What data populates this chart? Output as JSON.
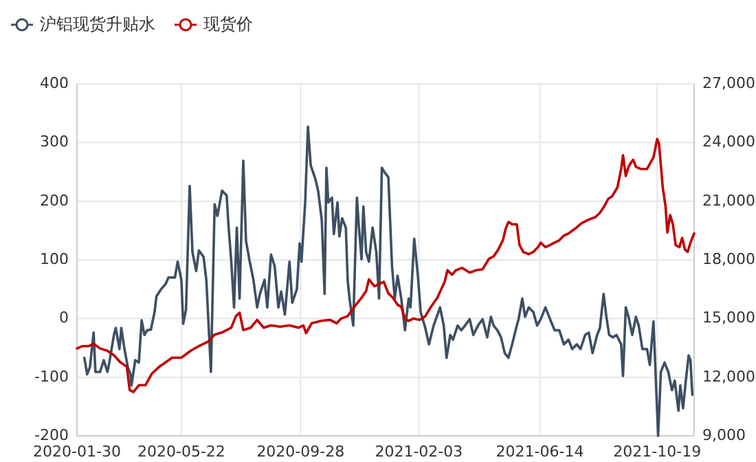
{
  "chart_data": {
    "type": "line",
    "xlim": [
      "2020-01-30",
      "2021-11-28"
    ],
    "xticks": [
      "2020-01-30",
      "2020-05-22",
      "2020-09-28",
      "2021-02-03",
      "2021-06-14",
      "2021-10-19"
    ],
    "ylim": [
      -200,
      400
    ],
    "yticks": [
      -200,
      -100,
      0,
      100,
      200,
      300,
      400
    ],
    "y2lim": [
      9000,
      27000
    ],
    "y2ticks": [
      {
        "value": 9000,
        "label": "9,000"
      },
      {
        "value": 12000,
        "label": "12,000"
      },
      {
        "value": 15000,
        "label": "15,000"
      },
      {
        "value": 18000,
        "label": "18,000"
      },
      {
        "value": 21000,
        "label": "21,000"
      },
      {
        "value": 24000,
        "label": "24,000"
      },
      {
        "value": 27000,
        "label": "27,000"
      }
    ],
    "grid": true,
    "legend": "top left",
    "line_style": "solid",
    "series": [
      {
        "name": "沪铝现货升贴水",
        "color": "#3d4f63",
        "axis": "y",
        "x": [
          "2020-02-07",
          "2020-02-10",
          "2020-02-13",
          "2020-02-17",
          "2020-02-19",
          "2020-02-24",
          "2020-02-28",
          "2020-03-03",
          "2020-03-05",
          "2020-03-10",
          "2020-03-12",
          "2020-03-16",
          "2020-03-18",
          "2020-03-21",
          "2020-03-25",
          "2020-03-28",
          "2020-03-29",
          "2020-04-02",
          "2020-04-06",
          "2020-04-09",
          "2020-04-12",
          "2020-04-15",
          "2020-04-19",
          "2020-04-23",
          "2020-04-25",
          "2020-04-30",
          "2020-05-05",
          "2020-05-08",
          "2020-05-15",
          "2020-05-18",
          "2020-05-22",
          "2020-05-24",
          "2020-05-27",
          "2020-05-31",
          "2020-06-03",
          "2020-06-07",
          "2020-06-10",
          "2020-06-15",
          "2020-06-18",
          "2020-06-23",
          "2020-06-27",
          "2020-06-30",
          "2020-07-05",
          "2020-07-10",
          "2020-07-12",
          "2020-07-15",
          "2020-07-18",
          "2020-07-21",
          "2020-07-24",
          "2020-07-28",
          "2020-07-31",
          "2020-08-04",
          "2020-08-08",
          "2020-08-12",
          "2020-08-15",
          "2020-08-20",
          "2020-08-23",
          "2020-08-27",
          "2020-08-31",
          "2020-09-04",
          "2020-09-07",
          "2020-09-11",
          "2020-09-16",
          "2020-09-19",
          "2020-09-24",
          "2020-09-27",
          "2020-09-29",
          "2020-10-03",
          "2020-10-06",
          "2020-10-09",
          "2020-10-14",
          "2020-10-17",
          "2020-10-21",
          "2020-10-24",
          "2020-10-26",
          "2020-10-28",
          "2020-11-01",
          "2020-11-03",
          "2020-11-07",
          "2020-11-09",
          "2020-11-12",
          "2020-11-16",
          "2020-11-18",
          "2020-11-20",
          "2020-11-24",
          "2020-11-28",
          "2020-11-30",
          "2020-12-03",
          "2020-12-05",
          "2020-12-08",
          "2020-12-11",
          "2020-12-15",
          "2020-12-19",
          "2020-12-22",
          "2020-12-25",
          "2020-12-28",
          "2021-01-01",
          "2021-01-05",
          "2021-01-08",
          "2021-01-11",
          "2021-01-15",
          "2021-01-19",
          "2021-01-23",
          "2021-01-25",
          "2021-01-29",
          "2021-02-02",
          "2021-02-05",
          "2021-02-10",
          "2021-02-14",
          "2021-02-19",
          "2021-02-26",
          "2021-03-02",
          "2021-03-05",
          "2021-03-09",
          "2021-03-12",
          "2021-03-17",
          "2021-03-21",
          "2021-03-25",
          "2021-03-30",
          "2021-04-03",
          "2021-04-08",
          "2021-04-13",
          "2021-04-18",
          "2021-04-22",
          "2021-04-25",
          "2021-04-29",
          "2021-05-03",
          "2021-05-07",
          "2021-05-11",
          "2021-05-15",
          "2021-05-20",
          "2021-05-22",
          "2021-05-26",
          "2021-05-29",
          "2021-06-02",
          "2021-06-07",
          "2021-06-11",
          "2021-06-15",
          "2021-06-20",
          "2021-06-25",
          "2021-06-30",
          "2021-07-05",
          "2021-07-10",
          "2021-07-15",
          "2021-07-19",
          "2021-07-24",
          "2021-07-28",
          "2021-08-02",
          "2021-08-06",
          "2021-08-10",
          "2021-08-15",
          "2021-08-18",
          "2021-08-22",
          "2021-08-25",
          "2021-08-28",
          "2021-09-01",
          "2021-09-05",
          "2021-09-10",
          "2021-09-12",
          "2021-09-15",
          "2021-09-18",
          "2021-09-22",
          "2021-09-26",
          "2021-09-29",
          "2021-10-03",
          "2021-10-08",
          "2021-10-11",
          "2021-10-15",
          "2021-10-18",
          "2021-10-20",
          "2021-10-23",
          "2021-10-27",
          "2021-10-31",
          "2021-11-04",
          "2021-11-07",
          "2021-11-11",
          "2021-11-13",
          "2021-11-16",
          "2021-11-19",
          "2021-11-22",
          "2021-11-24",
          "2021-11-26"
        ],
        "values": [
          -67,
          -95,
          -83,
          -24,
          -91,
          -91,
          -71,
          -91,
          -75,
          -28,
          -16,
          -52,
          -16,
          -48,
          -83,
          -95,
          -114,
          -71,
          -75,
          -3,
          -28,
          -20,
          -19,
          11,
          38,
          50,
          59,
          70,
          70,
          97,
          66,
          -9,
          15,
          226,
          113,
          81,
          116,
          105,
          66,
          -91,
          195,
          175,
          218,
          210,
          159,
          97,
          19,
          155,
          34,
          269,
          132,
          97,
          66,
          19,
          42,
          66,
          19,
          109,
          89,
          19,
          46,
          7,
          97,
          27,
          50,
          128,
          97,
          198,
          327,
          261,
          238,
          218,
          167,
          42,
          257,
          198,
          206,
          144,
          198,
          140,
          171,
          155,
          66,
          34,
          -12,
          206,
          159,
          101,
          191,
          113,
          97,
          155,
          113,
          34,
          257,
          249,
          241,
          89,
          34,
          73,
          34,
          -20,
          34,
          19,
          136,
          73,
          11,
          -16,
          -44,
          -12,
          19,
          -12,
          -67,
          -28,
          -36,
          -12,
          -20,
          -12,
          -1,
          -28,
          -12,
          -1,
          -32,
          3,
          -12,
          -20,
          -32,
          -59,
          -67,
          -44,
          -12,
          -1,
          34,
          3,
          19,
          11,
          -12,
          -1,
          19,
          -1,
          -20,
          -20,
          -44,
          -36,
          -52,
          -44,
          -52,
          -28,
          -24,
          -59,
          -28,
          -16,
          42,
          3,
          -28,
          -32,
          -28,
          -44,
          -98,
          19,
          3,
          -28,
          3,
          -12,
          -52,
          -52,
          -79,
          -5,
          -122,
          -200,
          -91,
          -75,
          -91,
          -122,
          -106,
          -157,
          -114,
          -153,
          -106,
          -63,
          -71,
          -130
        ]
      },
      {
        "name": "现货价",
        "color": "#c00000",
        "axis": "y2",
        "x": [
          "2020-01-30",
          "2020-02-05",
          "2020-02-12",
          "2020-02-17",
          "2020-02-24",
          "2020-03-03",
          "2020-03-10",
          "2020-03-17",
          "2020-03-24",
          "2020-03-27",
          "2020-03-31",
          "2020-04-06",
          "2020-04-13",
          "2020-04-20",
          "2020-04-28",
          "2020-05-05",
          "2020-05-12",
          "2020-05-22",
          "2020-06-01",
          "2020-06-10",
          "2020-06-20",
          "2020-06-27",
          "2020-07-05",
          "2020-07-15",
          "2020-07-20",
          "2020-07-24",
          "2020-07-28",
          "2020-08-05",
          "2020-08-12",
          "2020-08-19",
          "2020-08-27",
          "2020-09-06",
          "2020-09-16",
          "2020-09-26",
          "2020-10-01",
          "2020-10-04",
          "2020-10-10",
          "2020-10-20",
          "2020-10-30",
          "2020-11-06",
          "2020-11-11",
          "2020-11-18",
          "2020-11-25",
          "2020-12-03",
          "2020-12-08",
          "2020-12-11",
          "2020-12-17",
          "2020-12-27",
          "2021-01-01",
          "2021-01-06",
          "2021-01-11",
          "2021-01-15",
          "2021-01-19",
          "2021-01-23",
          "2021-01-28",
          "2021-02-04",
          "2021-02-10",
          "2021-02-16",
          "2021-02-23",
          "2021-03-03",
          "2021-03-06",
          "2021-03-11",
          "2021-03-15",
          "2021-03-22",
          "2021-03-30",
          "2021-04-06",
          "2021-04-13",
          "2021-04-20",
          "2021-04-25",
          "2021-04-30",
          "2021-05-05",
          "2021-05-08",
          "2021-05-11",
          "2021-05-15",
          "2021-05-20",
          "2021-05-23",
          "2021-05-27",
          "2021-06-02",
          "2021-06-07",
          "2021-06-12",
          "2021-06-15",
          "2021-06-20",
          "2021-06-25",
          "2021-06-30",
          "2021-07-05",
          "2021-07-10",
          "2021-07-15",
          "2021-07-22",
          "2021-07-29",
          "2021-08-06",
          "2021-08-13",
          "2021-08-18",
          "2021-08-23",
          "2021-08-27",
          "2021-08-31",
          "2021-09-06",
          "2021-09-10",
          "2021-09-12",
          "2021-09-15",
          "2021-09-18",
          "2021-09-21",
          "2021-09-23",
          "2021-09-26",
          "2021-10-01",
          "2021-10-08",
          "2021-10-15",
          "2021-10-19",
          "2021-10-21",
          "2021-10-25",
          "2021-10-28",
          "2021-10-30",
          "2021-11-02",
          "2021-11-05",
          "2021-11-08",
          "2021-11-12",
          "2021-11-15",
          "2021-11-18",
          "2021-11-21",
          "2021-11-24",
          "2021-11-28"
        ],
        "values": [
          13470,
          13590,
          13590,
          13710,
          13470,
          13350,
          13120,
          12760,
          12530,
          11350,
          11240,
          11590,
          11590,
          12180,
          12530,
          12760,
          13000,
          13000,
          13350,
          13590,
          13820,
          14180,
          14290,
          14530,
          15120,
          15300,
          14410,
          14530,
          14930,
          14530,
          14650,
          14580,
          14650,
          14530,
          14650,
          14250,
          14760,
          14880,
          14930,
          14760,
          15000,
          15120,
          15590,
          16060,
          16410,
          17000,
          16650,
          16880,
          16290,
          16060,
          15710,
          15590,
          15000,
          14880,
          15000,
          14930,
          15120,
          15590,
          16060,
          16880,
          17470,
          17240,
          17470,
          17590,
          17350,
          17470,
          17520,
          18060,
          18180,
          18530,
          19000,
          19590,
          19940,
          19820,
          19820,
          18760,
          18410,
          18290,
          18410,
          18650,
          18880,
          18650,
          18760,
          18880,
          19000,
          19240,
          19350,
          19590,
          19870,
          20060,
          20180,
          20410,
          20760,
          21120,
          21240,
          21710,
          22650,
          23350,
          22290,
          22760,
          23000,
          23120,
          22760,
          22650,
          22650,
          23240,
          24180,
          23940,
          21710,
          20760,
          19400,
          20290,
          19820,
          18760,
          18650,
          19120,
          18530,
          18410,
          18880,
          19350
        ]
      }
    ]
  }
}
